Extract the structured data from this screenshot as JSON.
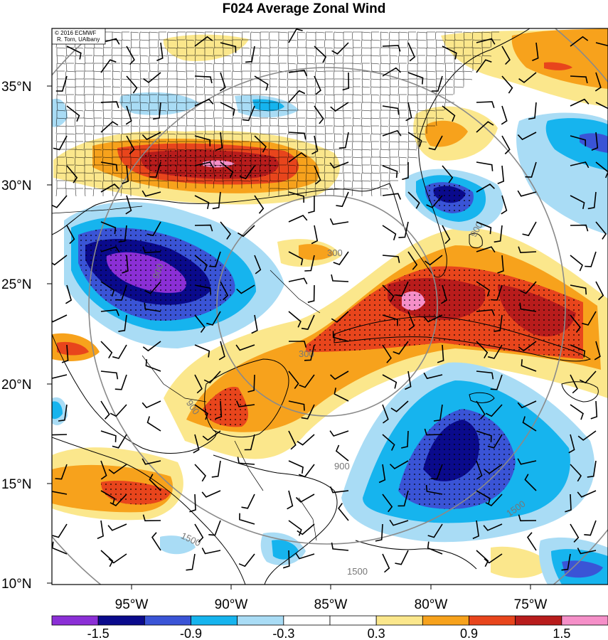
{
  "title": "F024 Average Zonal Wind",
  "credit": {
    "line1": "© 2016 ECMWF",
    "line2": "R. Torn, UAlbany"
  },
  "lat_labels": [
    "35°N",
    "30°N",
    "25°N",
    "20°N",
    "15°N",
    "10°N"
  ],
  "lon_labels": [
    "95°W",
    "90°W",
    "85°W",
    "80°W",
    "75°W"
  ],
  "colorbar": {
    "colors": [
      "#8b2fd6",
      "#0a0a8c",
      "#3a54d6",
      "#16b4ee",
      "#a9dcf5",
      "#ffffff",
      "#ffffff",
      "#fbe78c",
      "#f7a21c",
      "#e8451c",
      "#b81c1c",
      "#f58fc8"
    ],
    "tick_labels": [
      "-1.5",
      "-0.9",
      "-0.3",
      "0.3",
      "0.9",
      "1.5"
    ]
  },
  "range_rings": {
    "labels": [
      "300",
      "900",
      "1500"
    ]
  },
  "colors": {
    "land_line": "#000000",
    "ring_line": "#8a8a8a"
  }
}
